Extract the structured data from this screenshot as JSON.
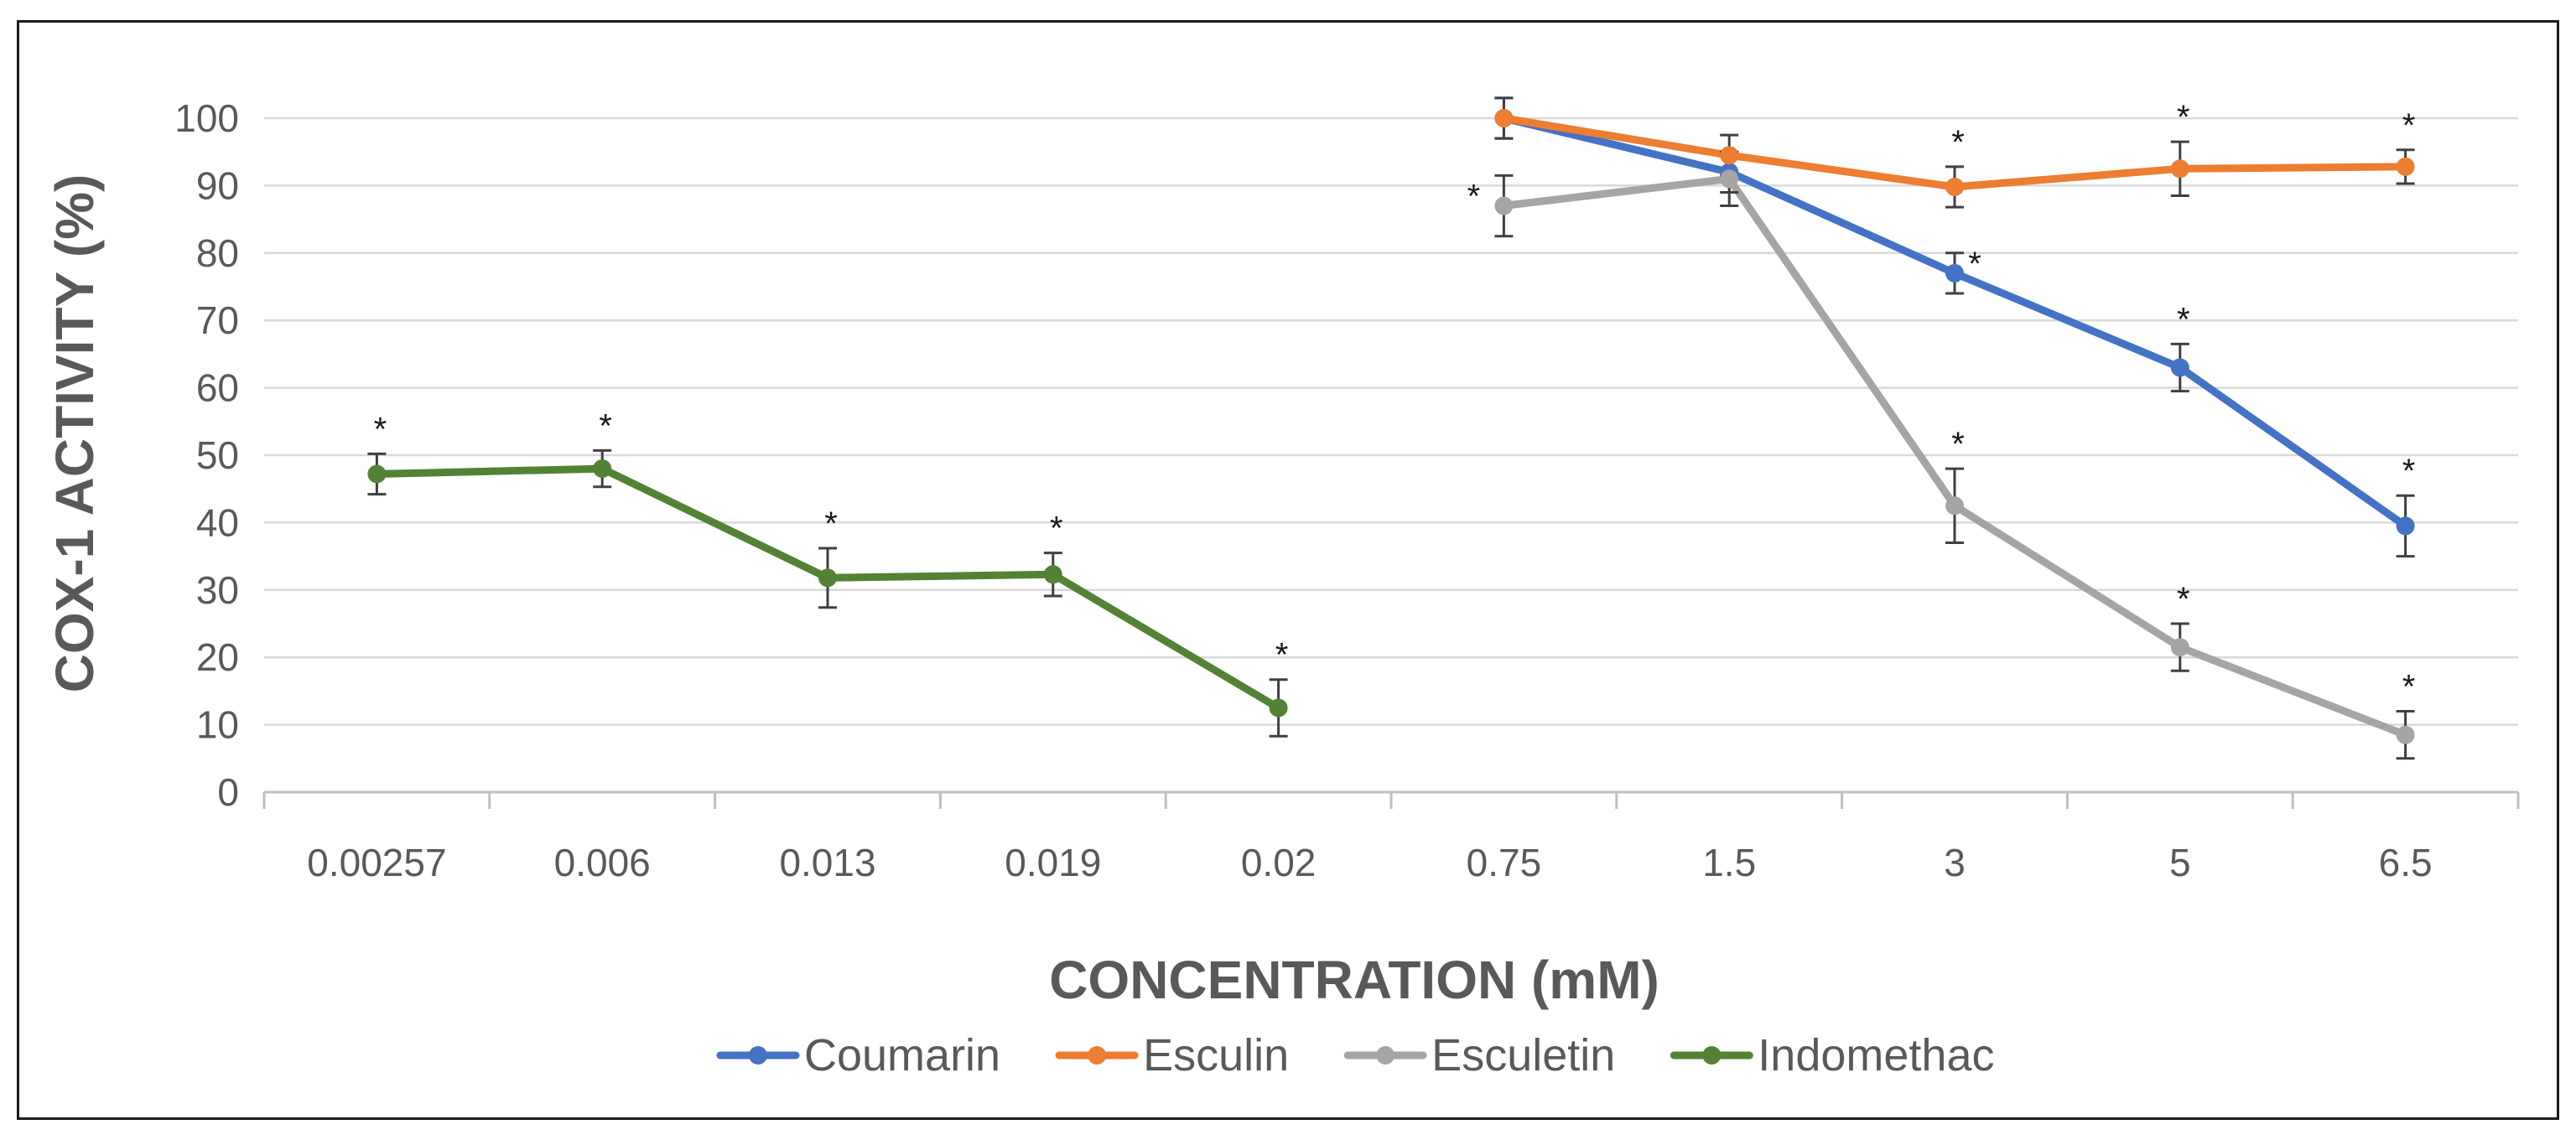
{
  "chart_data": {
    "type": "line",
    "title": "",
    "xlabel": "CONCENTRATION (mM)",
    "ylabel": "COX-1 ACTIVITY (%)",
    "ylim": [
      0,
      100
    ],
    "yticks": [
      0,
      10,
      20,
      30,
      40,
      50,
      60,
      70,
      80,
      90,
      100
    ],
    "grid": true,
    "legend_position": "bottom",
    "significance_marker": "*",
    "categories": [
      "0.00257",
      "0.006",
      "0.013",
      "0.019",
      "0.02",
      "0.75",
      "1.5",
      "3",
      "5",
      "6.5"
    ],
    "series": [
      {
        "name": "Coumarin",
        "color": "#4472C4",
        "values": [
          null,
          null,
          null,
          null,
          null,
          100,
          92,
          77,
          63,
          39.5
        ],
        "errors": [
          null,
          null,
          null,
          null,
          null,
          3,
          3,
          3,
          3.5,
          4.5
        ],
        "significant": [
          false,
          false,
          false,
          false,
          false,
          false,
          false,
          true,
          true,
          true
        ]
      },
      {
        "name": "Esculin",
        "color": "#ED7D31",
        "values": [
          null,
          null,
          null,
          null,
          null,
          100,
          94.5,
          89.8,
          92.5,
          92.8
        ],
        "errors": [
          null,
          null,
          null,
          null,
          null,
          3,
          3,
          3,
          4,
          2.5
        ],
        "significant": [
          false,
          false,
          false,
          false,
          false,
          false,
          false,
          true,
          true,
          true
        ]
      },
      {
        "name": "Esculetin",
        "color": "#A5A5A5",
        "values": [
          null,
          null,
          null,
          null,
          null,
          87,
          91,
          42.5,
          21.5,
          8.5
        ],
        "errors": [
          null,
          null,
          null,
          null,
          null,
          4.5,
          4,
          5.5,
          3.5,
          3.5
        ],
        "significant": [
          false,
          false,
          false,
          false,
          false,
          true,
          false,
          true,
          true,
          true
        ]
      },
      {
        "name": "Indomethac",
        "color": "#548235",
        "values": [
          47.2,
          48,
          31.8,
          32.3,
          12.5,
          null,
          null,
          null,
          null,
          null
        ],
        "errors": [
          3,
          2.7,
          4.4,
          3.2,
          4.2,
          null,
          null,
          null,
          null,
          null
        ],
        "significant": [
          true,
          true,
          true,
          true,
          true,
          false,
          false,
          false,
          false,
          false
        ]
      }
    ]
  }
}
